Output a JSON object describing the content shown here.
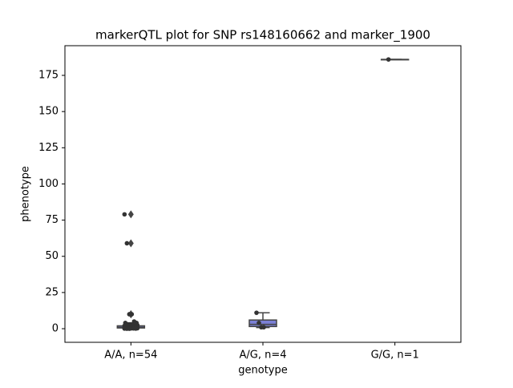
{
  "chart_data": {
    "type": "box",
    "title": "markerQTL plot for SNP rs148160662 and marker_1900",
    "x_label": "genotype",
    "y_label": "phenotype",
    "categories": [
      "A/A, n=54",
      "A/G, n=4",
      "G/G, n=1"
    ],
    "boxes": [
      {
        "whislo": 0,
        "q1": 0.5,
        "median": 1,
        "q3": 2,
        "whishi": 4,
        "outliers": [
          79,
          59,
          10,
          10
        ],
        "color": "#7b80d6"
      },
      {
        "whislo": 0.8,
        "q1": 1.5,
        "median": 3,
        "q3": 6,
        "whishi": 11,
        "outliers": [],
        "color": "#7b80d6"
      },
      {
        "whislo": 186,
        "q1": 186,
        "median": 186,
        "q3": 186,
        "whishi": 186,
        "outliers": [],
        "color": "#7b80d6"
      }
    ],
    "points": [
      [
        79,
        59,
        10,
        10,
        5,
        4,
        4,
        3,
        3,
        3,
        3,
        2.5,
        2.5,
        2,
        2,
        2,
        2,
        2,
        1.5,
        1.5,
        1.5,
        1.5,
        1.5,
        1.5,
        1,
        1,
        1,
        1,
        1,
        1,
        1,
        1,
        1,
        1,
        0.5,
        0.5,
        0.5,
        0.5,
        0.5,
        0.5,
        0.5,
        0.5,
        0.5,
        0.5,
        0.3,
        0.3,
        0.3,
        0.3,
        0.2,
        0.2,
        0.1,
        0.1,
        0,
        0
      ],
      [
        11,
        4,
        1,
        1
      ],
      [
        186
      ]
    ],
    "point_color": "#333333",
    "ylim": [
      -9.4,
      195.5
    ],
    "yticks": [
      0,
      25,
      50,
      75,
      100,
      125,
      150,
      175
    ]
  }
}
